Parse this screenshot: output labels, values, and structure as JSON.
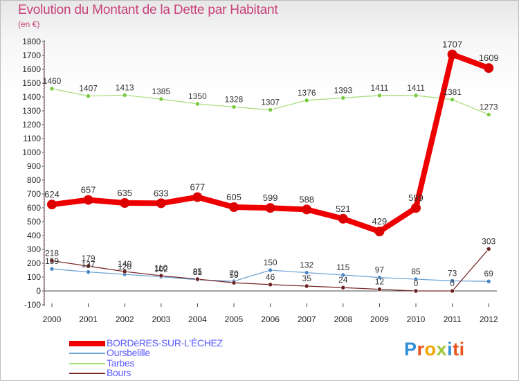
{
  "title": "Evolution du Montant de la Dette par Habitant",
  "subtitle": "(en €)",
  "logo_text": "Proxiti",
  "chart_data": {
    "type": "line",
    "x": [
      "2000",
      "2001",
      "2002",
      "2003",
      "2004",
      "2005",
      "2006",
      "2007",
      "2008",
      "2009",
      "2010",
      "2011",
      "2012"
    ],
    "ylim": [
      -100,
      1800
    ],
    "yticks": [
      -100,
      0,
      100,
      200,
      300,
      400,
      500,
      600,
      700,
      800,
      900,
      1000,
      1100,
      1200,
      1300,
      1400,
      1500,
      1600,
      1700,
      1800
    ],
    "grid": false,
    "legend_position": "bottom-left",
    "series": [
      {
        "name": "BORDèRES-SUR-L'ÉCHEZ",
        "color": "#ee0000",
        "marker": "#dd0000",
        "values": [
          624,
          657,
          635,
          633,
          677,
          605,
          599,
          588,
          521,
          429,
          599,
          1707,
          1609
        ]
      },
      {
        "name": "Oursbelille",
        "color": "#6fa5d6",
        "marker": "#4a86c5",
        "values": [
          159,
          137,
          120,
          102,
          81,
          70,
          150,
          132,
          115,
          97,
          85,
          73,
          69
        ]
      },
      {
        "name": "Tarbes",
        "color": "#a9de7f",
        "marker": "#77c93e",
        "values": [
          1460,
          1407,
          1413,
          1385,
          1350,
          1328,
          1307,
          1376,
          1393,
          1411,
          1411,
          1381,
          1273
        ]
      },
      {
        "name": "Bours",
        "color": "#7a2b2b",
        "marker": "#6a1f1f",
        "values": [
          218,
          179,
          140,
          110,
          85,
          59,
          46,
          35,
          24,
          12,
          0,
          0,
          303
        ]
      }
    ]
  }
}
